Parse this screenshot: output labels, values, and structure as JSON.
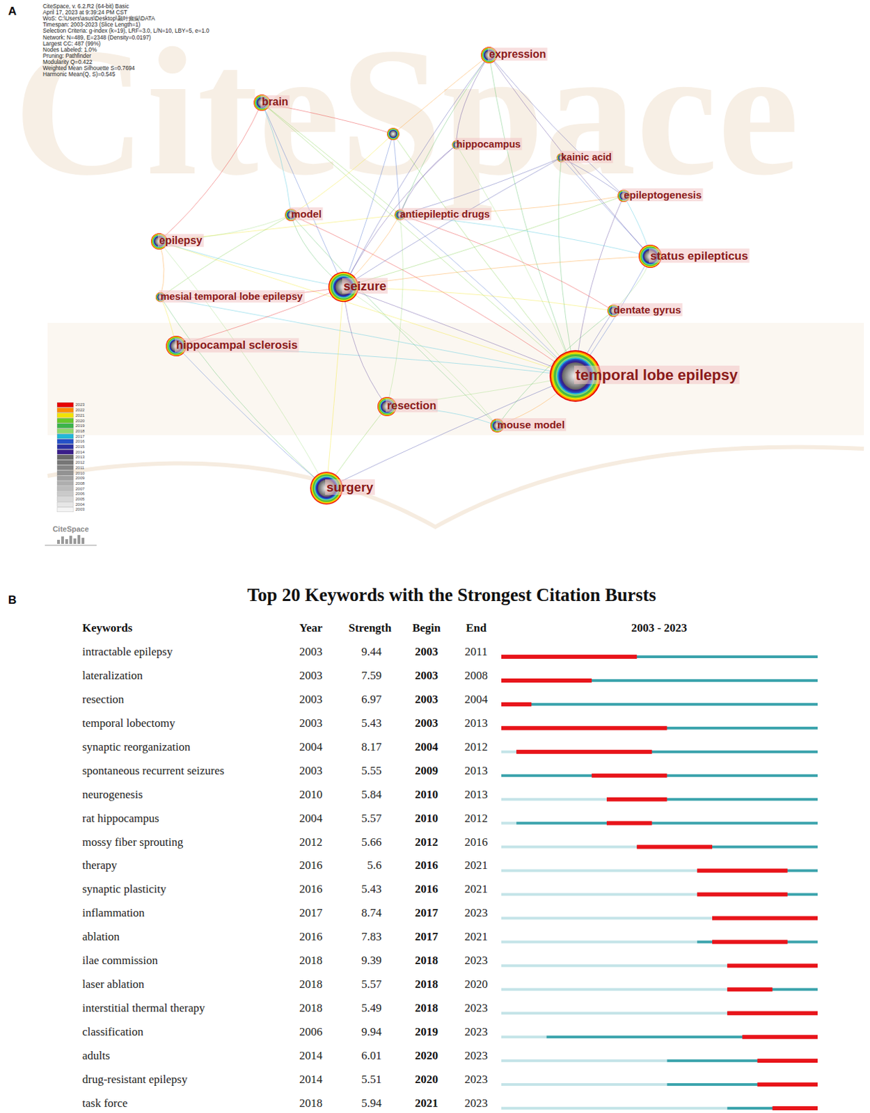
{
  "chart_data": [
    {
      "type": "network",
      "panel": "A",
      "watermark": "CiteSpace",
      "info": [
        "CiteSpace, v. 6.2.R2 (64-bit) Basic",
        "April 17, 2023 at 9:39:24 PM CST",
        "WoS: C:\\Users\\asus\\Desktop\\颞叶癫痫\\DATA",
        "Timespan: 2003-2023 (Slice Length=1)",
        "Selection Criteria: g-index (k=19), LRF=3.0, L/N=10, LBY=5, e=1.0",
        "Network: N=489, E=2348 (Density=0.0197)",
        "Largest CC: 487 (99%)",
        "Nodes Labeled: 1.0%",
        "Pruning: Pathfinder",
        "Modularity Q=0.422",
        "Weighted Mean Silhouette S=0.7694",
        "Harmonic Mean(Q, S)=0.545"
      ],
      "color_years": [
        2003,
        2004,
        2005,
        2006,
        2007,
        2008,
        2009,
        2010,
        2011,
        2012,
        2013,
        2014,
        2015,
        2016,
        2017,
        2018,
        2019,
        2020,
        2021,
        2022,
        2023
      ],
      "nodes": [
        {
          "label": "temporal lobe epilepsy",
          "count": 1400
        },
        {
          "label": "seizure",
          "count": 480
        },
        {
          "label": "surgery",
          "count": 560
        },
        {
          "label": "status epilepticus",
          "count": 280
        },
        {
          "label": "hippocampal sclerosis",
          "count": 220
        },
        {
          "label": "resection",
          "count": 190
        },
        {
          "label": "expression",
          "count": 140
        },
        {
          "label": "brain",
          "count": 140
        },
        {
          "label": "epilepsy",
          "count": 140
        },
        {
          "label": "mouse model",
          "count": 100
        },
        {
          "label": "model",
          "count": 80
        },
        {
          "label": "epileptogenesis",
          "count": 80
        },
        {
          "label": "dentate gyrus",
          "count": 80
        },
        {
          "label": "antiepileptic drugs",
          "count": 60
        },
        {
          "label": "mesial temporal lobe epilepsy",
          "count": 50
        },
        {
          "label": "hippocampus",
          "count": 40
        },
        {
          "label": "kainic acid",
          "count": 40
        },
        {
          "label": null,
          "count": 80
        }
      ],
      "edges": [
        [
          0,
          1
        ],
        [
          0,
          2
        ],
        [
          0,
          3
        ],
        [
          0,
          4
        ],
        [
          0,
          5
        ],
        [
          0,
          6
        ],
        [
          0,
          7
        ],
        [
          0,
          8
        ],
        [
          0,
          9
        ],
        [
          0,
          10
        ],
        [
          0,
          11
        ],
        [
          0,
          12
        ],
        [
          0,
          13
        ],
        [
          0,
          14
        ],
        [
          0,
          15
        ],
        [
          0,
          16
        ],
        [
          0,
          17
        ],
        [
          1,
          2
        ],
        [
          1,
          3
        ],
        [
          1,
          4
        ],
        [
          1,
          5
        ],
        [
          1,
          6
        ],
        [
          1,
          7
        ],
        [
          1,
          8
        ],
        [
          1,
          9
        ],
        [
          1,
          10
        ],
        [
          1,
          11
        ],
        [
          1,
          12
        ],
        [
          1,
          13
        ],
        [
          1,
          14
        ],
        [
          1,
          15
        ],
        [
          1,
          16
        ],
        [
          1,
          17
        ],
        [
          13,
          3
        ],
        [
          13,
          5
        ],
        [
          13,
          6
        ],
        [
          13,
          7
        ],
        [
          13,
          8
        ],
        [
          13,
          11
        ],
        [
          13,
          12
        ],
        [
          13,
          15
        ],
        [
          13,
          16
        ],
        [
          13,
          17
        ],
        [
          10,
          7
        ],
        [
          10,
          8
        ],
        [
          10,
          9
        ],
        [
          10,
          14
        ],
        [
          10,
          17
        ],
        [
          17,
          6
        ],
        [
          17,
          7
        ],
        [
          15,
          6
        ],
        [
          16,
          11
        ],
        [
          16,
          3
        ],
        [
          11,
          3
        ],
        [
          12,
          3
        ],
        [
          9,
          12
        ],
        [
          5,
          2
        ],
        [
          4,
          14
        ],
        [
          8,
          14
        ],
        [
          7,
          8
        ],
        [
          6,
          3
        ],
        [
          6,
          11
        ],
        [
          4,
          2
        ],
        [
          5,
          9
        ],
        [
          2,
          8
        ],
        [
          2,
          14
        ]
      ]
    },
    {
      "type": "burst_timeline",
      "panel": "B",
      "title": "Top 20 Keywords with the Strongest Citation Bursts",
      "columns": [
        "Keywords",
        "Year",
        "Strength",
        "Begin",
        "End",
        "2003 - 2023"
      ],
      "xlim": [
        2003,
        2023
      ],
      "rows": [
        {
          "keyword": "intractable epilepsy",
          "year": 2003,
          "strength": 9.44,
          "begin": 2003,
          "end": 2011
        },
        {
          "keyword": "lateralization",
          "year": 2003,
          "strength": 7.59,
          "begin": 2003,
          "end": 2008
        },
        {
          "keyword": "resection",
          "year": 2003,
          "strength": 6.97,
          "begin": 2003,
          "end": 2004
        },
        {
          "keyword": "temporal lobectomy",
          "year": 2003,
          "strength": 5.43,
          "begin": 2003,
          "end": 2013
        },
        {
          "keyword": "synaptic reorganization",
          "year": 2004,
          "strength": 8.17,
          "begin": 2004,
          "end": 2012
        },
        {
          "keyword": "spontaneous recurrent seizures",
          "year": 2003,
          "strength": 5.55,
          "begin": 2009,
          "end": 2013
        },
        {
          "keyword": "neurogenesis",
          "year": 2010,
          "strength": 5.84,
          "begin": 2010,
          "end": 2013
        },
        {
          "keyword": "rat hippocampus",
          "year": 2004,
          "strength": 5.57,
          "begin": 2010,
          "end": 2012
        },
        {
          "keyword": "mossy fiber sprouting",
          "year": 2012,
          "strength": 5.66,
          "begin": 2012,
          "end": 2016
        },
        {
          "keyword": "therapy",
          "year": 2016,
          "strength": 5.6,
          "begin": 2016,
          "end": 2021
        },
        {
          "keyword": "synaptic plasticity",
          "year": 2016,
          "strength": 5.43,
          "begin": 2016,
          "end": 2021
        },
        {
          "keyword": "inflammation",
          "year": 2017,
          "strength": 8.74,
          "begin": 2017,
          "end": 2023
        },
        {
          "keyword": "ablation",
          "year": 2016,
          "strength": 7.83,
          "begin": 2017,
          "end": 2021
        },
        {
          "keyword": "ilae commission",
          "year": 2018,
          "strength": 9.39,
          "begin": 2018,
          "end": 2023
        },
        {
          "keyword": "laser ablation",
          "year": 2018,
          "strength": 5.57,
          "begin": 2018,
          "end": 2020
        },
        {
          "keyword": "interstitial thermal therapy",
          "year": 2018,
          "strength": 5.49,
          "begin": 2018,
          "end": 2023
        },
        {
          "keyword": "classification",
          "year": 2006,
          "strength": 9.94,
          "begin": 2019,
          "end": 2023
        },
        {
          "keyword": "adults",
          "year": 2014,
          "strength": 6.01,
          "begin": 2020,
          "end": 2023
        },
        {
          "keyword": "drug-resistant epilepsy",
          "year": 2014,
          "strength": 5.51,
          "begin": 2020,
          "end": 2023
        },
        {
          "keyword": "task force",
          "year": 2018,
          "strength": 5.94,
          "begin": 2021,
          "end": 2023
        }
      ]
    }
  ]
}
